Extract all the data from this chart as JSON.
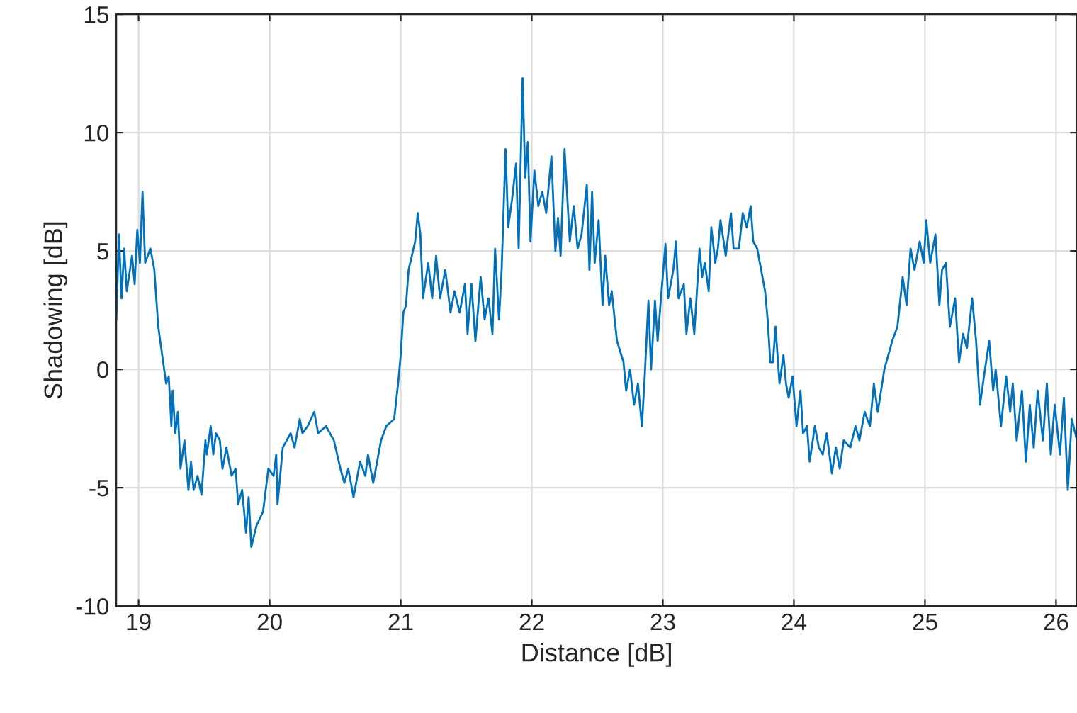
{
  "chart_data": {
    "type": "line",
    "xlabel": "Distance [dB]",
    "ylabel": "Shadowing [dB]",
    "xlim": [
      18.83,
      26.16
    ],
    "ylim": [
      -10,
      15
    ],
    "xticks": [
      19,
      20,
      21,
      22,
      23,
      24,
      25,
      26
    ],
    "yticks": [
      -10,
      -5,
      0,
      5,
      10,
      15
    ],
    "grid": true,
    "line_style": "solid",
    "marker": "none",
    "series": [
      {
        "color": "#0072bd",
        "x": [
          18.83,
          18.85,
          18.87,
          18.89,
          18.91,
          18.95,
          18.97,
          18.99,
          19.01,
          19.03,
          19.05,
          19.09,
          19.12,
          19.15,
          19.18,
          19.21,
          19.23,
          19.25,
          19.26,
          19.28,
          19.3,
          19.32,
          19.35,
          19.38,
          19.4,
          19.42,
          19.45,
          19.48,
          19.51,
          19.52,
          19.55,
          19.57,
          19.59,
          19.62,
          19.64,
          19.67,
          19.71,
          19.74,
          19.76,
          19.79,
          19.82,
          19.84,
          19.86,
          19.9,
          19.95,
          19.99,
          20.03,
          20.05,
          20.06,
          20.1,
          20.16,
          20.19,
          20.23,
          20.25,
          20.29,
          20.34,
          20.37,
          20.43,
          20.49,
          20.54,
          20.57,
          20.6,
          20.64,
          20.69,
          20.73,
          20.75,
          20.79,
          20.82,
          20.85,
          20.89,
          20.95,
          20.98,
          21.0,
          21.02,
          21.04,
          21.06,
          21.11,
          21.13,
          21.15,
          21.17,
          21.21,
          21.24,
          21.27,
          21.3,
          21.34,
          21.38,
          21.41,
          21.45,
          21.49,
          21.51,
          21.54,
          21.57,
          21.61,
          21.64,
          21.67,
          21.7,
          21.72,
          21.75,
          21.77,
          21.8,
          21.82,
          21.85,
          21.88,
          21.9,
          21.93,
          21.95,
          21.97,
          21.99,
          22.02,
          22.05,
          22.08,
          22.11,
          22.15,
          22.18,
          22.2,
          22.22,
          22.25,
          22.29,
          22.32,
          22.35,
          22.38,
          22.42,
          22.44,
          22.46,
          22.48,
          22.51,
          22.54,
          22.56,
          22.59,
          22.61,
          22.65,
          22.7,
          22.72,
          22.75,
          22.78,
          22.81,
          22.84,
          22.86,
          22.89,
          22.91,
          22.94,
          22.96,
          22.99,
          23.02,
          23.04,
          23.08,
          23.1,
          23.12,
          23.16,
          23.18,
          23.21,
          23.24,
          23.28,
          23.3,
          23.32,
          23.35,
          23.37,
          23.4,
          23.42,
          23.44,
          23.48,
          23.5,
          23.52,
          23.54,
          23.58,
          23.61,
          23.64,
          23.67,
          23.69,
          23.72,
          23.76,
          23.78,
          23.8,
          23.82,
          23.84,
          23.86,
          23.89,
          23.92,
          23.94,
          23.96,
          23.99,
          24.02,
          24.05,
          24.07,
          24.1,
          24.12,
          24.16,
          24.19,
          24.22,
          24.25,
          24.29,
          24.32,
          24.35,
          24.38,
          24.43,
          24.47,
          24.5,
          24.54,
          24.58,
          24.61,
          24.64,
          24.69,
          24.72,
          24.75,
          24.79,
          24.83,
          24.86,
          24.89,
          24.92,
          24.96,
          24.99,
          25.01,
          25.04,
          25.08,
          25.11,
          25.13,
          25.16,
          25.19,
          25.23,
          25.26,
          25.29,
          25.32,
          25.36,
          25.39,
          25.42,
          25.45,
          25.49,
          25.52,
          25.54,
          25.58,
          25.62,
          25.65,
          25.67,
          25.7,
          25.74,
          25.77,
          25.8,
          25.83,
          25.86,
          25.9,
          25.93,
          25.96,
          25.99,
          26.03,
          26.06,
          26.09,
          26.12,
          26.16
        ],
        "values": [
          2.1,
          5.7,
          3.0,
          5.1,
          3.3,
          4.8,
          3.6,
          5.9,
          4.5,
          7.5,
          4.5,
          5.1,
          4.2,
          1.8,
          0.6,
          -0.6,
          -0.3,
          -2.4,
          -0.9,
          -2.7,
          -1.8,
          -4.2,
          -3.0,
          -5.1,
          -3.9,
          -5.1,
          -4.5,
          -5.3,
          -3.0,
          -3.6,
          -2.4,
          -3.6,
          -2.7,
          -3.0,
          -4.2,
          -3.3,
          -4.5,
          -4.2,
          -5.7,
          -5.1,
          -6.9,
          -5.4,
          -7.5,
          -6.6,
          -6.0,
          -4.2,
          -4.5,
          -3.6,
          -5.7,
          -3.3,
          -2.7,
          -3.3,
          -2.1,
          -2.7,
          -2.4,
          -1.8,
          -2.7,
          -2.4,
          -3.0,
          -4.2,
          -4.8,
          -4.2,
          -5.4,
          -3.9,
          -4.5,
          -3.6,
          -4.8,
          -3.9,
          -3.0,
          -2.4,
          -2.1,
          -0.6,
          0.6,
          2.4,
          2.7,
          4.2,
          5.4,
          6.6,
          5.7,
          3.0,
          4.5,
          3.0,
          4.8,
          3.0,
          4.2,
          2.4,
          3.3,
          2.4,
          3.6,
          1.5,
          3.6,
          1.2,
          3.9,
          2.1,
          3.0,
          1.5,
          5.1,
          2.1,
          4.2,
          9.3,
          6.0,
          7.2,
          8.7,
          5.1,
          12.3,
          8.1,
          9.6,
          5.4,
          8.4,
          6.9,
          7.5,
          6.6,
          9.0,
          5.0,
          6.4,
          4.8,
          9.3,
          5.4,
          6.9,
          5.1,
          5.7,
          7.8,
          4.2,
          7.5,
          4.5,
          6.3,
          2.7,
          4.8,
          2.7,
          3.3,
          1.2,
          0.3,
          -0.9,
          0.0,
          -1.5,
          -0.6,
          -2.4,
          -0.5,
          2.9,
          0.0,
          2.9,
          1.2,
          3.3,
          5.3,
          3.0,
          4.2,
          5.4,
          3.0,
          3.6,
          1.5,
          3.0,
          1.5,
          5.1,
          3.9,
          4.5,
          3.3,
          6.0,
          4.5,
          5.1,
          6.3,
          4.8,
          5.7,
          6.6,
          5.1,
          5.1,
          6.6,
          6.0,
          6.9,
          5.4,
          5.1,
          3.9,
          3.3,
          2.1,
          0.3,
          0.3,
          1.8,
          -0.6,
          0.6,
          -0.6,
          -1.2,
          -0.3,
          -2.4,
          -0.9,
          -2.7,
          -2.4,
          -3.9,
          -2.4,
          -3.3,
          -3.6,
          -2.7,
          -4.4,
          -3.3,
          -4.2,
          -3.0,
          -3.3,
          -2.4,
          -3.0,
          -1.8,
          -2.4,
          -0.6,
          -1.8,
          0.0,
          0.6,
          1.2,
          1.8,
          3.9,
          2.7,
          5.1,
          4.2,
          5.4,
          4.5,
          6.3,
          4.5,
          5.7,
          2.7,
          4.2,
          4.5,
          1.8,
          3.0,
          0.3,
          1.5,
          0.9,
          3.0,
          1.2,
          -1.5,
          -0.3,
          1.2,
          -0.9,
          0.0,
          -2.4,
          -0.3,
          -1.8,
          -0.6,
          -3.0,
          -0.9,
          -3.9,
          -1.5,
          -3.3,
          -0.9,
          -3.0,
          -0.6,
          -3.6,
          -1.5,
          -3.6,
          -1.2,
          -5.1,
          -2.1,
          -3.0
        ]
      }
    ]
  }
}
